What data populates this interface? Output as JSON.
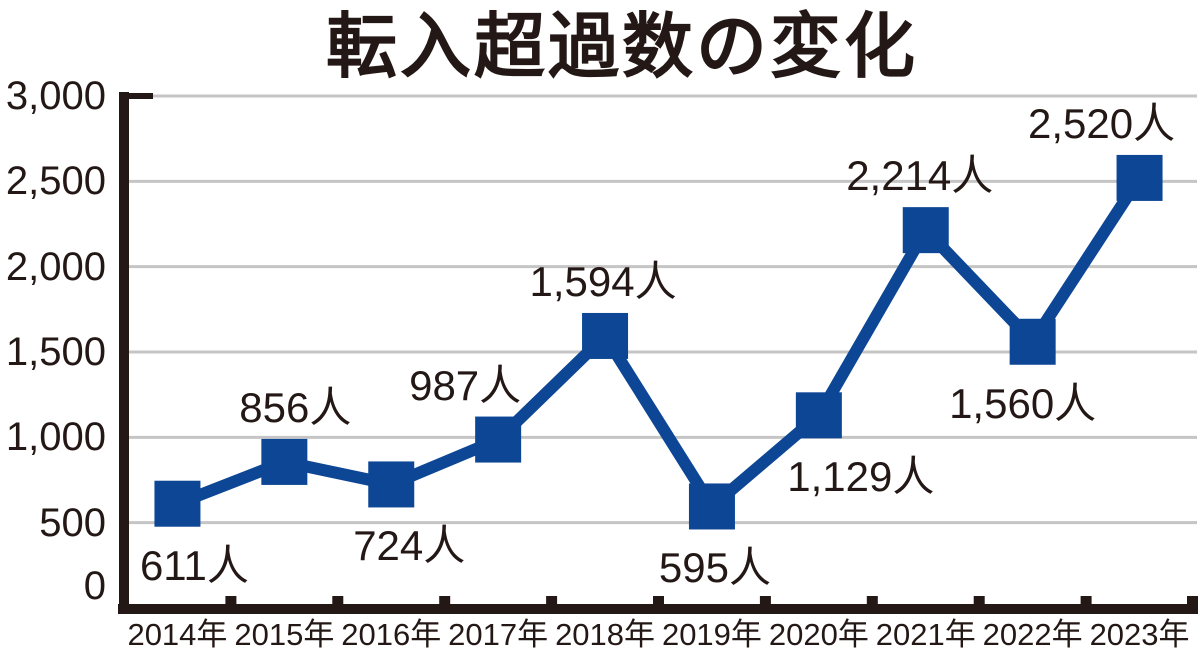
{
  "page": {
    "background": "#ffffff"
  },
  "chart_data": {
    "type": "line",
    "title": "転入超過数の変化",
    "xlabel": "",
    "ylabel": "",
    "unit_suffix": "人",
    "categories": [
      "2014年",
      "2015年",
      "2016年",
      "2017年",
      "2018年",
      "2019年",
      "2020年",
      "2021年",
      "2022年",
      "2023年"
    ],
    "series": [
      {
        "name": "転入超過数",
        "values": [
          611,
          856,
          724,
          987,
          1594,
          595,
          1129,
          2214,
          1560,
          2520
        ]
      }
    ],
    "points": [
      {
        "category": "2014年",
        "value": 611,
        "label": "611人",
        "label_side": "below",
        "label_dx": 17
      },
      {
        "category": "2015年",
        "value": 856,
        "label": "856人",
        "label_side": "above",
        "label_dx": 11
      },
      {
        "category": "2016年",
        "value": 724,
        "label": "724人",
        "label_side": "below",
        "label_dx": 18
      },
      {
        "category": "2017年",
        "value": 987,
        "label": "987人",
        "label_side": "above",
        "label_dx": -33
      },
      {
        "category": "2018年",
        "value": 1594,
        "label": "1,594人",
        "label_side": "above",
        "label_dx": -2
      },
      {
        "category": "2019年",
        "value": 595,
        "label": "595人",
        "label_side": "below",
        "label_dx": 3
      },
      {
        "category": "2020年",
        "value": 1129,
        "label": "1,129人",
        "label_side": "below",
        "label_dx": 42
      },
      {
        "category": "2021年",
        "value": 2214,
        "label": "2,214人",
        "label_side": "above",
        "label_dx": -6
      },
      {
        "category": "2022年",
        "value": 1560,
        "label": "1,560人",
        "label_side": "below",
        "label_dx": -10
      },
      {
        "category": "2023年",
        "value": 2520,
        "label": "2,520人",
        "label_side": "above",
        "label_dx": -38
      }
    ],
    "y_ticks": [
      {
        "label": "0",
        "value": 0,
        "dy": -22
      },
      {
        "label": "500",
        "value": 500,
        "dy": 0
      },
      {
        "label": "1,000",
        "value": 1000,
        "dy": 0
      },
      {
        "label": "1,500",
        "value": 1500,
        "dy": 0
      },
      {
        "label": "2,000",
        "value": 2000,
        "dy": 0
      },
      {
        "label": "2,500",
        "value": 2500,
        "dy": 0
      },
      {
        "label": "3,000",
        "value": 3000,
        "dy": 0
      }
    ],
    "ylim": [
      0,
      3000
    ],
    "grid": true,
    "legend": false,
    "marker": "square",
    "colors": {
      "line": "#0c4695",
      "marker": "#0c4695",
      "text": "#231815",
      "axis": "#231815",
      "gridline": "#c5c5c5",
      "background": "#ffffff"
    }
  }
}
